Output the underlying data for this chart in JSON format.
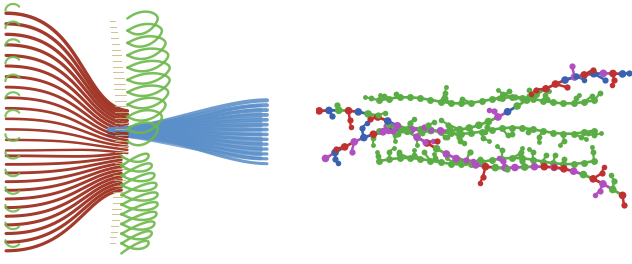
{
  "background_color": "#ffffff",
  "left_panel": {
    "ribbon_red": "#9b2a1a",
    "ribbon_blue": "#5b8fc9",
    "ribbon_green": "#6db84a",
    "ribbon_tan": "#c8b87a",
    "n_strands_upper": 14,
    "n_strands_lower": 12,
    "n_blue": 14
  },
  "right_panel": {
    "green": "#5aad45",
    "blue": "#3a60b0",
    "purple": "#b050c0",
    "red": "#c03030"
  }
}
